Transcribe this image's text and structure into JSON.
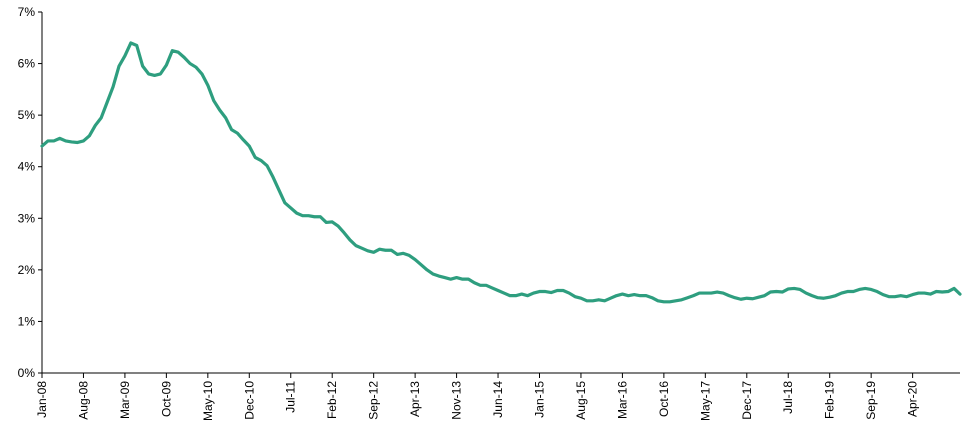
{
  "chart_data": {
    "type": "line",
    "title": "",
    "xlabel": "",
    "ylabel": "",
    "x_tick_labels": [
      "Jan-08",
      "Aug-08",
      "Mar-09",
      "Oct-09",
      "May-10",
      "Dec-10",
      "Jul-11",
      "Feb-12",
      "Sep-12",
      "Apr-13",
      "Nov-13",
      "Jun-14",
      "Jan-15",
      "Aug-15",
      "Mar-16",
      "Oct-16",
      "May-17",
      "Dec-17",
      "Jul-18",
      "Feb-19",
      "Sep-19",
      "Apr-20"
    ],
    "y_tick_labels": [
      "0%",
      "1%",
      "2%",
      "3%",
      "4%",
      "5%",
      "6%",
      "7%"
    ],
    "ylim": [
      0,
      7
    ],
    "x_range": [
      "Jan-08",
      "May-20"
    ],
    "grid": false,
    "legend": "none",
    "colors": {
      "line": "#2e9e7f",
      "axis": "#000000"
    },
    "series": [
      {
        "name": "",
        "values": [
          4.4,
          4.5,
          4.5,
          4.55,
          4.5,
          4.48,
          4.47,
          4.5,
          4.6,
          4.8,
          4.95,
          5.25,
          5.55,
          5.95,
          6.15,
          6.4,
          6.35,
          5.95,
          5.8,
          5.77,
          5.8,
          5.97,
          6.25,
          6.22,
          6.12,
          6.0,
          5.93,
          5.8,
          5.58,
          5.28,
          5.1,
          4.95,
          4.72,
          4.65,
          4.52,
          4.4,
          4.18,
          4.12,
          4.02,
          3.8,
          3.55,
          3.3,
          3.2,
          3.1,
          3.05,
          3.05,
          3.03,
          3.03,
          2.92,
          2.93,
          2.85,
          2.72,
          2.58,
          2.47,
          2.42,
          2.37,
          2.34,
          2.4,
          2.38,
          2.38,
          2.3,
          2.32,
          2.28,
          2.2,
          2.1,
          2.0,
          1.92,
          1.88,
          1.85,
          1.82,
          1.85,
          1.82,
          1.82,
          1.75,
          1.7,
          1.7,
          1.65,
          1.6,
          1.55,
          1.5,
          1.5,
          1.53,
          1.5,
          1.55,
          1.58,
          1.58,
          1.56,
          1.6,
          1.6,
          1.55,
          1.48,
          1.45,
          1.4,
          1.4,
          1.42,
          1.4,
          1.45,
          1.5,
          1.53,
          1.5,
          1.52,
          1.5,
          1.5,
          1.46,
          1.4,
          1.38,
          1.38,
          1.4,
          1.42,
          1.46,
          1.5,
          1.55,
          1.55,
          1.55,
          1.57,
          1.55,
          1.5,
          1.46,
          1.43,
          1.45,
          1.44,
          1.47,
          1.5,
          1.57,
          1.58,
          1.57,
          1.63,
          1.64,
          1.62,
          1.55,
          1.5,
          1.46,
          1.45,
          1.47,
          1.5,
          1.55,
          1.58,
          1.58,
          1.62,
          1.64,
          1.62,
          1.58,
          1.52,
          1.48,
          1.48,
          1.5,
          1.48,
          1.52,
          1.55,
          1.55,
          1.53,
          1.58,
          1.57,
          1.58,
          1.64,
          1.53
        ]
      }
    ]
  }
}
